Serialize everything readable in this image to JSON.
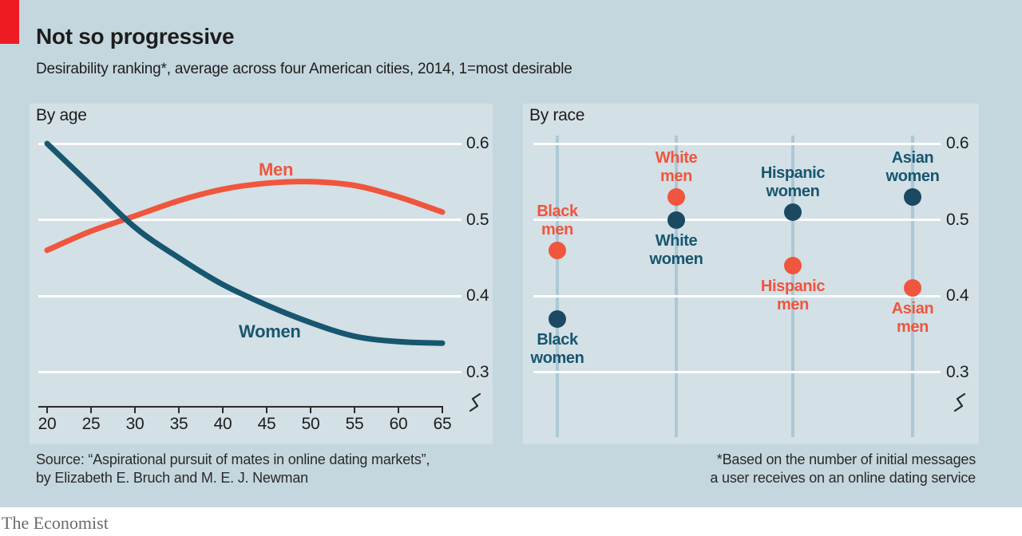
{
  "header": {
    "title": "Not so progressive",
    "subtitle": "Desirability ranking*, average across four American cities, 2014, 1=most desirable"
  },
  "footer": {
    "source": "Source: “Aspirational pursuit of mates in online dating markets”,\nby Elizabeth E. Bruch and M. E. J. Newman",
    "footnote": "*Based on the number of initial messages\na user receives on an online dating service",
    "brand": "The Economist"
  },
  "colors": {
    "accent_red": "#ED1C24",
    "page_bg": "#C5D7DE",
    "panel_bg": "#D3E0E6",
    "gridline": "#FFFFFF",
    "men_orange": "#F0553D",
    "women_teal": "#17566F",
    "women_dot": "#1B4961",
    "column_line": "#ACC8D4",
    "text_dark": "#1D1D1D"
  },
  "chart_data": [
    {
      "type": "line",
      "title": "By age",
      "xlabel": "Age",
      "x": [
        20,
        25,
        30,
        35,
        40,
        45,
        50,
        55,
        60,
        65
      ],
      "y_ticks": [
        0.6,
        0.5,
        0.4,
        0.3
      ],
      "ylim": [
        0.27,
        0.62
      ],
      "axis_break": true,
      "grid": true,
      "series": [
        {
          "name": "Men",
          "color": "#F0553D",
          "values": [
            0.46,
            0.485,
            0.505,
            0.525,
            0.54,
            0.548,
            0.55,
            0.545,
            0.53,
            0.51
          ]
        },
        {
          "name": "Women",
          "color": "#17566F",
          "values": [
            0.6,
            0.545,
            0.49,
            0.45,
            0.415,
            0.388,
            0.365,
            0.347,
            0.34,
            0.338
          ]
        }
      ]
    },
    {
      "type": "scatter",
      "title": "By race",
      "y_ticks": [
        0.6,
        0.5,
        0.4,
        0.3
      ],
      "ylim": [
        0.27,
        0.62
      ],
      "axis_break": true,
      "men_color": "#F0553D",
      "women_color": "#1B4961",
      "women_label_color": "#17566F",
      "groups": [
        {
          "race": "Black",
          "men": 0.46,
          "women": 0.37,
          "men_label": "Black\nmen",
          "women_label": "Black\nwomen"
        },
        {
          "race": "White",
          "men": 0.53,
          "women": 0.5,
          "men_label": "White\nmen",
          "women_label": "White\nwomen"
        },
        {
          "race": "Hispanic",
          "men": 0.44,
          "women": 0.51,
          "men_label": "Hispanic\nmen",
          "women_label": "Hispanic\nwomen"
        },
        {
          "race": "Asian",
          "men": 0.41,
          "women": 0.53,
          "men_label": "Asian\nmen",
          "women_label": "Asian\nwomen"
        }
      ]
    }
  ]
}
